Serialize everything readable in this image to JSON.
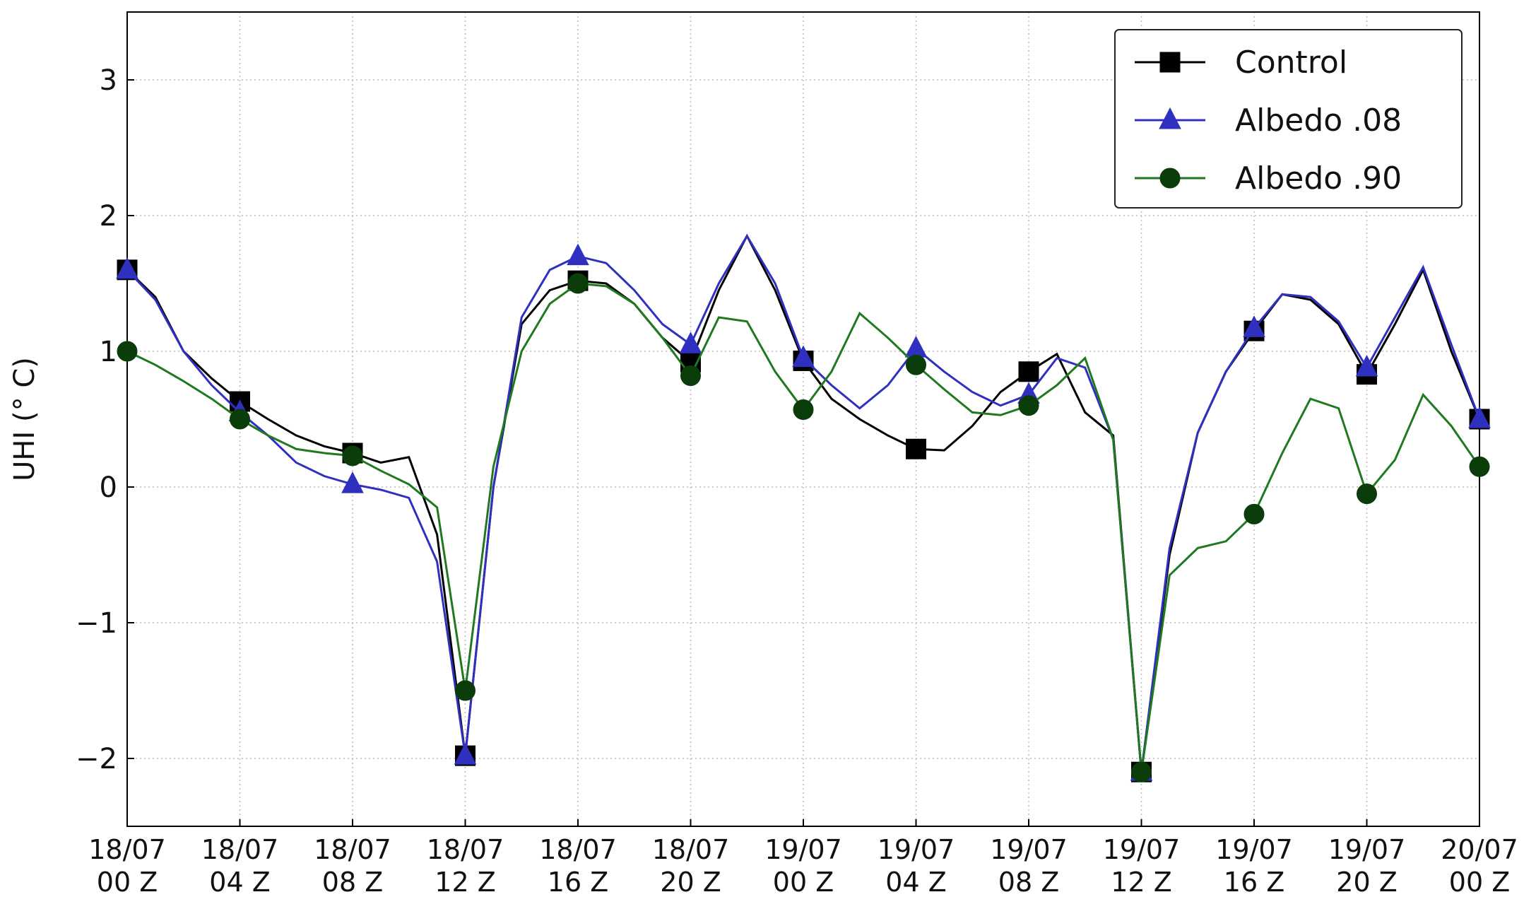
{
  "chart_data": {
    "type": "line",
    "y_label": "UHI (° C)",
    "x": [
      0,
      1,
      2,
      3,
      4,
      5,
      6,
      7,
      8,
      9,
      10,
      11,
      12,
      13,
      14,
      15,
      16,
      17,
      18,
      19,
      20,
      21,
      22,
      23,
      24,
      25,
      26,
      27,
      28,
      29,
      30,
      31,
      32,
      33,
      34,
      35,
      36,
      37,
      38,
      39,
      40,
      41,
      42,
      43,
      44,
      45,
      46,
      47,
      48
    ],
    "xlim": [
      0,
      48
    ],
    "xticks": [
      {
        "value": 0,
        "label": "18/07\n00 Z"
      },
      {
        "value": 4,
        "label": "18/07\n04 Z"
      },
      {
        "value": 8,
        "label": "18/07\n08 Z"
      },
      {
        "value": 12,
        "label": "18/07\n12 Z"
      },
      {
        "value": 16,
        "label": "18/07\n16 Z"
      },
      {
        "value": 20,
        "label": "18/07\n20 Z"
      },
      {
        "value": 24,
        "label": "19/07\n00 Z"
      },
      {
        "value": 28,
        "label": "19/07\n04 Z"
      },
      {
        "value": 32,
        "label": "19/07\n08 Z"
      },
      {
        "value": 36,
        "label": "19/07\n12 Z"
      },
      {
        "value": 40,
        "label": "19/07\n16 Z"
      },
      {
        "value": 44,
        "label": "19/07\n20 Z"
      },
      {
        "value": 48,
        "label": "20/07\n00 Z"
      }
    ],
    "ylim": [
      -2.5,
      3.5
    ],
    "yticks": [
      {
        "value": -2,
        "label": "−2"
      },
      {
        "value": -1,
        "label": "−1"
      },
      0,
      1,
      2,
      3
    ],
    "grid": true,
    "legend": "upper right",
    "markevery": 4,
    "series": [
      {
        "name": "Control",
        "color": "#000000",
        "marker": "square",
        "values": [
          1.6,
          1.4,
          1.0,
          0.8,
          0.63,
          0.5,
          0.38,
          0.3,
          0.25,
          0.18,
          0.22,
          -0.35,
          -1.98,
          0.0,
          1.2,
          1.45,
          1.52,
          1.5,
          1.35,
          1.1,
          0.92,
          1.45,
          1.85,
          1.45,
          0.93,
          0.65,
          0.5,
          0.38,
          0.28,
          0.27,
          0.45,
          0.7,
          0.85,
          0.98,
          0.55,
          0.38,
          -2.1,
          -0.5,
          0.4,
          0.85,
          1.15,
          1.42,
          1.38,
          1.2,
          0.83,
          1.2,
          1.6,
          1.0,
          0.5
        ]
      },
      {
        "name": "Albedo .08",
        "color": "#3030c0",
        "marker": "triangle",
        "values": [
          1.6,
          1.38,
          1.0,
          0.75,
          0.55,
          0.38,
          0.18,
          0.08,
          0.02,
          -0.02,
          -0.08,
          -0.55,
          -1.98,
          0.0,
          1.25,
          1.6,
          1.7,
          1.65,
          1.45,
          1.2,
          1.05,
          1.5,
          1.85,
          1.5,
          0.95,
          0.75,
          0.58,
          0.75,
          1.02,
          0.85,
          0.7,
          0.6,
          0.68,
          0.95,
          0.88,
          0.35,
          -2.1,
          -0.45,
          0.4,
          0.85,
          1.17,
          1.42,
          1.4,
          1.22,
          0.88,
          1.25,
          1.62,
          1.05,
          0.5
        ]
      },
      {
        "name": "Albedo .90",
        "color": "#1f7a1f",
        "marker": "circle",
        "values": [
          1.0,
          0.9,
          0.78,
          0.65,
          0.5,
          0.38,
          0.28,
          0.25,
          0.23,
          0.12,
          0.02,
          -0.15,
          -1.5,
          0.15,
          1.0,
          1.35,
          1.5,
          1.48,
          1.35,
          1.1,
          0.82,
          1.25,
          1.22,
          0.85,
          0.57,
          0.85,
          1.28,
          1.1,
          0.9,
          0.72,
          0.55,
          0.53,
          0.6,
          0.75,
          0.95,
          0.35,
          -2.1,
          -0.65,
          -0.45,
          -0.4,
          -0.2,
          0.25,
          0.65,
          0.58,
          -0.05,
          0.2,
          0.68,
          0.45,
          0.15
        ]
      }
    ]
  }
}
